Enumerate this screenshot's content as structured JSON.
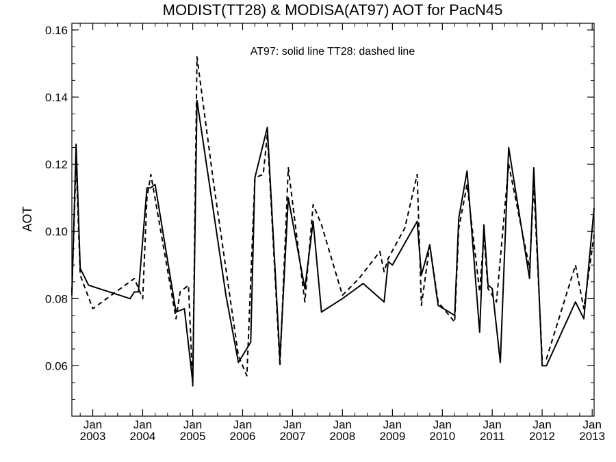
{
  "chart_data": {
    "type": "line",
    "title": "MODIST(TT28) & MODISA(AT97)  AOT for PacN45",
    "annotation": "AT97: solid line   TT28: dashed line",
    "xlabel": "",
    "ylabel": "AOT",
    "xlim": [
      "2002-08-01",
      "2013-01-15"
    ],
    "ylim": [
      0.045,
      0.162
    ],
    "yticks": [
      0.06,
      0.08,
      0.1,
      0.12,
      0.14,
      0.16
    ],
    "ytick_labels": [
      "0.06",
      "0.08",
      "0.10",
      "0.12",
      "0.14",
      "0.16"
    ],
    "xticks": [
      {
        "date": "2003-01-01",
        "month": "Jan",
        "year": "2003"
      },
      {
        "date": "2004-01-01",
        "month": "Jan",
        "year": "2004"
      },
      {
        "date": "2005-01-01",
        "month": "Jan",
        "year": "2005"
      },
      {
        "date": "2006-01-01",
        "month": "Jan",
        "year": "2006"
      },
      {
        "date": "2007-01-01",
        "month": "Jan",
        "year": "2007"
      },
      {
        "date": "2008-01-01",
        "month": "Jan",
        "year": "2008"
      },
      {
        "date": "2009-01-01",
        "month": "Jan",
        "year": "2009"
      },
      {
        "date": "2010-01-01",
        "month": "Jan",
        "year": "2010"
      },
      {
        "date": "2011-01-01",
        "month": "Jan",
        "year": "2011"
      },
      {
        "date": "2012-01-01",
        "month": "Jan",
        "year": "2012"
      },
      {
        "date": "2013-01-01",
        "month": "Jan",
        "year": "2013"
      }
    ],
    "grid": false,
    "series": [
      {
        "name": "AT97",
        "style": "solid",
        "color": "#000000",
        "points": [
          [
            "2002-08-01",
            0.081
          ],
          [
            "2002-09-01",
            0.126
          ],
          [
            "2002-10-01",
            0.089
          ],
          [
            "2002-12-01",
            0.084
          ],
          [
            "2003-10-01",
            0.08
          ],
          [
            "2003-11-01",
            0.082
          ],
          [
            "2003-12-01",
            0.082
          ],
          [
            "2004-02-01",
            0.113
          ],
          [
            "2004-03-01",
            0.113
          ],
          [
            "2004-04-01",
            0.114
          ],
          [
            "2004-09-01",
            0.076
          ],
          [
            "2004-11-01",
            0.077
          ],
          [
            "2005-01-01",
            0.055
          ],
          [
            "2005-02-01",
            0.139
          ],
          [
            "2005-09-01",
            0.081
          ],
          [
            "2005-12-01",
            0.061
          ],
          [
            "2006-03-01",
            0.067
          ],
          [
            "2006-04-01",
            0.116
          ],
          [
            "2006-07-01",
            0.131
          ],
          [
            "2006-10-01",
            0.062
          ],
          [
            "2006-12-01",
            0.11
          ],
          [
            "2007-04-01",
            0.083
          ],
          [
            "2007-06-01",
            0.103
          ],
          [
            "2007-08-01",
            0.076
          ],
          [
            "2008-01-01",
            0.08
          ],
          [
            "2008-06-01",
            0.0845
          ],
          [
            "2008-11-01",
            0.079
          ],
          [
            "2008-12-01",
            0.091
          ],
          [
            "2009-01-01",
            0.09
          ],
          [
            "2009-07-01",
            0.103
          ],
          [
            "2009-08-01",
            0.087
          ],
          [
            "2009-10-01",
            0.096
          ],
          [
            "2009-12-01",
            0.078
          ],
          [
            "2010-04-01",
            0.075
          ],
          [
            "2010-05-01",
            0.104
          ],
          [
            "2010-07-01",
            0.118
          ],
          [
            "2010-10-01",
            0.07
          ],
          [
            "2010-11-01",
            0.102
          ],
          [
            "2010-12-01",
            0.084
          ],
          [
            "2011-01-01",
            0.083
          ],
          [
            "2011-03-01",
            0.061
          ],
          [
            "2011-05-01",
            0.125
          ],
          [
            "2011-10-01",
            0.086
          ],
          [
            "2011-11-01",
            0.119
          ],
          [
            "2012-01-01",
            0.06
          ],
          [
            "2012-02-01",
            0.06
          ],
          [
            "2012-09-01",
            0.079
          ],
          [
            "2012-11-01",
            0.074
          ],
          [
            "2013-02-01",
            0.107
          ]
        ]
      },
      {
        "name": "TT28",
        "style": "dashed",
        "color": "#000000",
        "points": [
          [
            "2002-08-01",
            0.082
          ],
          [
            "2002-09-01",
            0.121
          ],
          [
            "2002-10-01",
            0.087
          ],
          [
            "2003-01-01",
            0.077
          ],
          [
            "2003-11-01",
            0.086
          ],
          [
            "2004-01-01",
            0.08
          ],
          [
            "2004-02-01",
            0.11
          ],
          [
            "2004-03-01",
            0.117
          ],
          [
            "2004-09-01",
            0.074
          ],
          [
            "2004-10-01",
            0.082
          ],
          [
            "2004-12-01",
            0.084
          ],
          [
            "2005-01-01",
            0.054
          ],
          [
            "2005-02-01",
            0.152
          ],
          [
            "2005-06-01",
            0.115
          ],
          [
            "2005-12-01",
            0.063
          ],
          [
            "2006-02-01",
            0.057
          ],
          [
            "2006-04-01",
            0.116
          ],
          [
            "2006-06-01",
            0.117
          ],
          [
            "2006-07-01",
            0.129
          ],
          [
            "2006-10-01",
            0.06
          ],
          [
            "2006-12-01",
            0.119
          ],
          [
            "2007-04-01",
            0.079
          ],
          [
            "2007-06-01",
            0.108
          ],
          [
            "2007-08-01",
            0.102
          ],
          [
            "2008-01-01",
            0.081
          ],
          [
            "2008-05-01",
            0.086
          ],
          [
            "2008-10-01",
            0.094
          ],
          [
            "2008-11-01",
            0.088
          ],
          [
            "2008-12-01",
            0.092
          ],
          [
            "2009-04-01",
            0.101
          ],
          [
            "2009-07-01",
            0.117
          ],
          [
            "2009-08-01",
            0.078
          ],
          [
            "2009-10-01",
            0.096
          ],
          [
            "2009-12-01",
            0.079
          ],
          [
            "2010-04-01",
            0.073
          ],
          [
            "2010-05-01",
            0.101
          ],
          [
            "2010-07-01",
            0.114
          ],
          [
            "2010-10-01",
            0.082
          ],
          [
            "2010-11-01",
            0.099
          ],
          [
            "2010-12-01",
            0.083
          ],
          [
            "2011-02-01",
            0.079
          ],
          [
            "2011-05-01",
            0.12
          ],
          [
            "2011-10-01",
            0.089
          ],
          [
            "2011-11-01",
            0.114
          ],
          [
            "2012-01-01",
            0.062
          ],
          [
            "2012-02-01",
            0.062
          ],
          [
            "2012-09-01",
            0.09
          ],
          [
            "2012-11-01",
            0.077
          ],
          [
            "2013-02-01",
            0.099
          ]
        ]
      }
    ]
  }
}
